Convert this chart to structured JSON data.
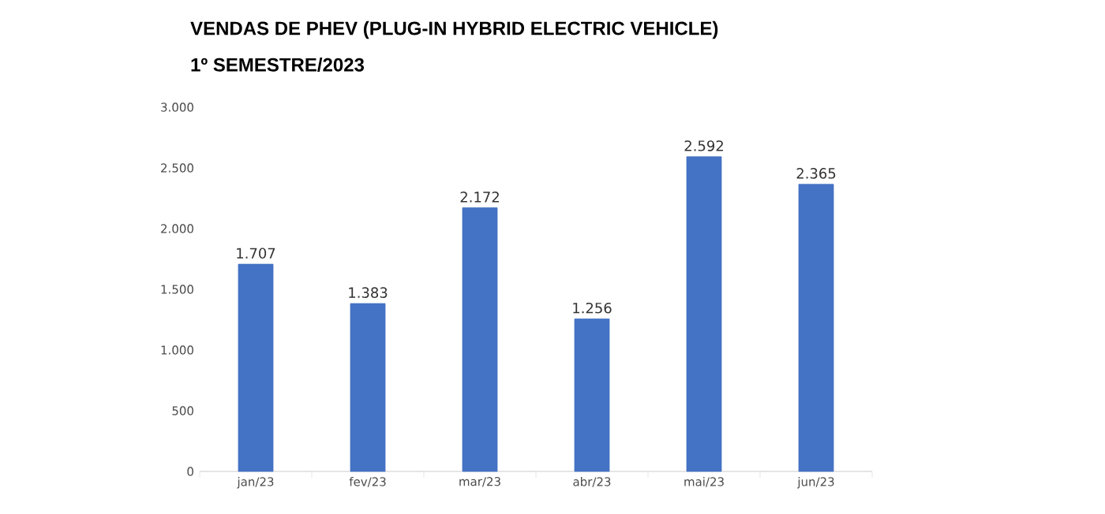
{
  "chart_data": {
    "type": "bar",
    "title": "VENDAS DE PHEV (PLUG-IN HYBRID ELECTRIC VEHICLE)",
    "subtitle": "1º SEMESTRE/2023",
    "categories": [
      "jan/23",
      "fev/23",
      "mar/23",
      "abr/23",
      "mai/23",
      "jun/23"
    ],
    "values": [
      1707,
      1383,
      2172,
      1256,
      2592,
      2365
    ],
    "value_labels": [
      "1.707",
      "1.383",
      "2.172",
      "1.256",
      "2.592",
      "2.365"
    ],
    "color": "#4472c4",
    "ylim": [
      0,
      3000
    ],
    "yticks": [
      {
        "value": 0,
        "label": "0"
      },
      {
        "value": 500,
        "label": "500"
      },
      {
        "value": 1000,
        "label": "1.000"
      },
      {
        "value": 1500,
        "label": "1.500"
      },
      {
        "value": 2000,
        "label": "2.000"
      },
      {
        "value": 2500,
        "label": "2.500"
      },
      {
        "value": 3000,
        "label": "3.000"
      }
    ],
    "grid": false
  }
}
